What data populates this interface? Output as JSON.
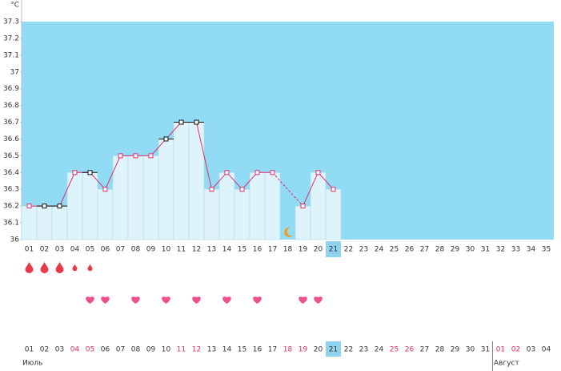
{
  "chart_data": {
    "type": "line",
    "unit": "°C",
    "categories": [
      "01",
      "02",
      "03",
      "04",
      "05",
      "06",
      "07",
      "08",
      "09",
      "10",
      "11",
      "12",
      "13",
      "14",
      "15",
      "16",
      "17",
      "18",
      "19",
      "20",
      "21",
      "22",
      "23",
      "24",
      "25",
      "26",
      "27",
      "28",
      "29",
      "30",
      "31",
      "32",
      "33",
      "34",
      "35"
    ],
    "values": [
      36.2,
      36.2,
      36.2,
      36.4,
      36.4,
      36.3,
      36.5,
      36.5,
      36.5,
      36.6,
      36.7,
      36.7,
      36.3,
      36.4,
      36.3,
      36.4,
      36.4,
      null,
      36.2,
      36.4,
      36.3,
      null,
      null,
      null,
      null,
      null,
      null,
      null,
      null,
      null,
      null,
      null,
      null,
      null,
      null
    ],
    "marker_colors": [
      "#e0306a",
      "#111111",
      "#111111",
      "#e0306a",
      "#111111",
      "#e0306a",
      "#e0306a",
      "#e0306a",
      "#e0306a",
      "#111111",
      "#111111",
      "#111111",
      "#e0306a",
      "#e0306a",
      "#e0306a",
      "#e0306a",
      "#e0306a",
      null,
      "#e0306a",
      "#e0306a",
      "#e0306a",
      null,
      null,
      null,
      null,
      null,
      null,
      null,
      null,
      null,
      null,
      null,
      null,
      null,
      null
    ],
    "color": "#e0306a",
    "bar_color": "#dff3fb",
    "background": "#91dbf4",
    "ylim": [
      36,
      37.3
    ],
    "yticks": [
      36,
      36.1,
      36.2,
      36.3,
      36.4,
      36.5,
      36.6,
      36.7,
      36.8,
      36.9,
      37,
      37.1,
      37.2,
      37.3
    ],
    "highlight": 20,
    "drops": [
      "large",
      "large",
      "large",
      "small",
      "small",
      null,
      null,
      null,
      null,
      null,
      null,
      null,
      null,
      null,
      null,
      null,
      null,
      null,
      null,
      null,
      null,
      null,
      null,
      null,
      null,
      null,
      null,
      null,
      null,
      null,
      null,
      null,
      null,
      null,
      null
    ],
    "hearts": [
      false,
      false,
      false,
      false,
      true,
      true,
      false,
      true,
      false,
      true,
      false,
      true,
      false,
      true,
      false,
      true,
      false,
      false,
      true,
      true,
      false,
      false,
      false,
      false,
      false,
      false,
      false,
      false,
      false,
      false,
      false,
      false,
      false,
      false,
      false
    ],
    "moon": 17,
    "calendar_days": [
      "01",
      "02",
      "03",
      "04",
      "05",
      "06",
      "07",
      "08",
      "09",
      "10",
      "11",
      "12",
      "13",
      "14",
      "15",
      "16",
      "17",
      "18",
      "19",
      "20",
      "21",
      "22",
      "23",
      "24",
      "25",
      "26",
      "27",
      "28",
      "29",
      "30",
      "31",
      "01",
      "02",
      "03",
      "04"
    ],
    "weekend": [
      false,
      false,
      false,
      true,
      true,
      false,
      false,
      false,
      false,
      false,
      true,
      true,
      false,
      false,
      false,
      false,
      false,
      true,
      true,
      false,
      false,
      false,
      false,
      false,
      true,
      true,
      false,
      false,
      false,
      false,
      false,
      true,
      true,
      false,
      false
    ],
    "months": [
      {
        "name": "Июль",
        "start": 0
      },
      {
        "name": "Август",
        "start": 31
      }
    ]
  }
}
